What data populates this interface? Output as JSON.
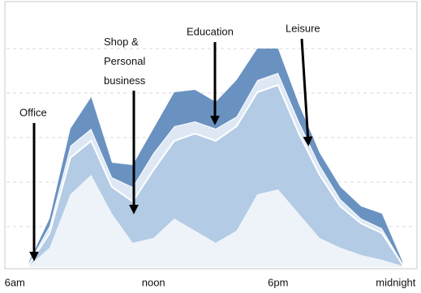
{
  "chart_data": {
    "type": "area",
    "stacked": true,
    "x": [
      6,
      7,
      8,
      9,
      10,
      11,
      12,
      13,
      14,
      15,
      16,
      17,
      18,
      19,
      20,
      21,
      22,
      23,
      24
    ],
    "xlim": [
      5,
      24.5
    ],
    "xticks": [
      {
        "value": 6,
        "label": "6am"
      },
      {
        "value": 12,
        "label": "noon"
      },
      {
        "value": 18,
        "label": "6pm"
      },
      {
        "value": 24,
        "label": "midnight"
      }
    ],
    "ylim": [
      0,
      100
    ],
    "series": [
      {
        "name": "Office",
        "color": "#eef3f9",
        "values": [
          0.5,
          8,
          30,
          38,
          22,
          10,
          12,
          20,
          15,
          10,
          15,
          30,
          32,
          22,
          12,
          8,
          5,
          3,
          0.5
        ]
      },
      {
        "name": "Shop & Personal business",
        "color": "#b3cbe4",
        "values": [
          0.5,
          6,
          15,
          14,
          11,
          17,
          28,
          32,
          40,
          42,
          43,
          42,
          43,
          33,
          26,
          17,
          13,
          11,
          0.5
        ]
      },
      {
        "name": "Education",
        "color": "#dde8f4",
        "values": [
          0.5,
          3,
          5,
          5,
          4,
          6,
          7,
          6,
          5,
          5,
          4,
          5,
          5,
          5,
          4,
          3,
          2,
          2,
          0.5
        ]
      },
      {
        "name": "Leisure",
        "color": "#6a92c1",
        "values": [
          0.5,
          3,
          7,
          13,
          6,
          9,
          10,
          14,
          13,
          11,
          15,
          13,
          10,
          7,
          5,
          5,
          5,
          6,
          0.5
        ]
      }
    ]
  }
}
